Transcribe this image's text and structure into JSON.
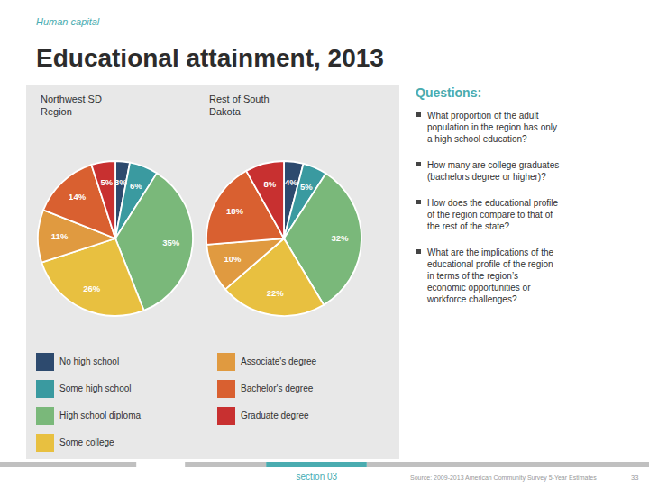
{
  "title": "Educational attainment, 2013",
  "subtitle": "Human capital",
  "annotations": [
    "Questions:",
    "What proportion of the adult\npopulation in the region has only\na high school education?",
    "How many are college graduates\n(bachelors degree or higher)?",
    "How does the educational profile\nof the region compare to that of\nthe rest of the state?",
    "What are the implications of the\neducational profile of the region\nin terms of the region’s\neconomic opportunities or\nworkforce challenges?",
    "section 03",
    "Source: 2009-2013 American Community Survey 5-Year Estimates",
    "33"
  ],
  "chart_data": [
    {
      "type": "pie",
      "title": "Northwest SD\nRegion",
      "categories": [
        "No high school",
        "Some high school",
        "High school diploma",
        "Some college",
        "Associate's degree",
        "Bachelor's degree",
        "Graduate degree"
      ],
      "values": [
        3,
        6,
        35,
        26,
        11,
        14,
        5
      ],
      "value_labels": [
        "3%",
        "6%",
        "35%",
        "26%",
        "11%",
        "14%",
        "5%"
      ],
      "colors": [
        "#2d4a6e",
        "#3a9aa0",
        "#7ab87a",
        "#e8c040",
        "#e09a40",
        "#d96030",
        "#c83030"
      ],
      "data_labels": true,
      "legend": "bottom"
    },
    {
      "type": "pie",
      "title": "Rest of South\nDakota",
      "categories": [
        "No high school",
        "Some high school",
        "High school diploma",
        "Some college",
        "Associate's degree",
        "Bachelor's degree",
        "Graduate degree"
      ],
      "values": [
        4,
        5,
        32,
        22,
        10,
        18,
        8
      ],
      "value_labels": [
        "4%",
        "5%",
        "32%",
        "22%",
        "10%",
        "18%",
        "8%"
      ],
      "colors": [
        "#2d4a6e",
        "#3a9aa0",
        "#7ab87a",
        "#e8c040",
        "#e09a40",
        "#d96030",
        "#c83030"
      ],
      "data_labels": true
    }
  ]
}
